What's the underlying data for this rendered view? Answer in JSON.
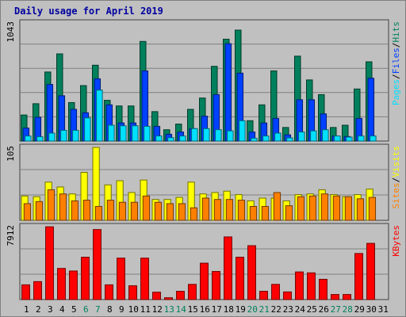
{
  "title": "Daily usage for April 2019",
  "colors": {
    "hits": "#00805c",
    "files": "#0040ff",
    "pages": "#00e0ff",
    "visits": "#ffff00",
    "sites": "#ff8000",
    "kbytes": "#ff0000",
    "weekend_label": "#00805c",
    "weekday_label": "#000000",
    "background": "#c0c0c0",
    "title": "#0000a0"
  },
  "chart_data": [
    {
      "type": "bar",
      "panel": "top",
      "y_tick_label": "1043",
      "ylim": [
        0,
        1043
      ],
      "grid": true,
      "legend_right": [
        "Pages",
        "/",
        "Files",
        "/",
        "Hits"
      ],
      "categories": [
        "1",
        "2",
        "3",
        "4",
        "5",
        "6",
        "7",
        "8",
        "9",
        "10",
        "11",
        "12",
        "13",
        "14",
        "15",
        "16",
        "17",
        "18",
        "19",
        "20",
        "21",
        "22",
        "23",
        "24",
        "25",
        "26",
        "27",
        "28",
        "29",
        "30",
        "31"
      ],
      "weekend_days": [
        "6",
        "7",
        "13",
        "14",
        "20",
        "21",
        "27",
        "28"
      ],
      "series": [
        {
          "name": "Hits",
          "values": [
            230,
            330,
            610,
            770,
            340,
            490,
            670,
            360,
            310,
            310,
            880,
            260,
            100,
            150,
            280,
            380,
            660,
            900,
            980,
            180,
            320,
            620,
            120,
            750,
            540,
            410,
            120,
            140,
            460,
            700,
            0
          ]
        },
        {
          "name": "Files",
          "values": [
            115,
            210,
            500,
            400,
            280,
            250,
            550,
            320,
            160,
            160,
            620,
            130,
            60,
            80,
            110,
            220,
            410,
            860,
            600,
            80,
            160,
            200,
            55,
            365,
            365,
            240,
            45,
            40,
            200,
            555,
            0
          ]
        },
        {
          "name": "Pages",
          "values": [
            45,
            38,
            70,
            95,
            95,
            205,
            450,
            140,
            135,
            135,
            130,
            45,
            30,
            45,
            110,
            110,
            100,
            90,
            180,
            25,
            45,
            70,
            28,
            80,
            90,
            100,
            45,
            35,
            45,
            45,
            0
          ]
        }
      ]
    },
    {
      "type": "bar",
      "panel": "middle",
      "y_tick_label": "105",
      "ylim": [
        0,
        105
      ],
      "grid": true,
      "legend_right": [
        "Sites",
        "/",
        "Visits"
      ],
      "categories": [
        "1",
        "2",
        "3",
        "4",
        "5",
        "6",
        "7",
        "8",
        "9",
        "10",
        "11",
        "12",
        "13",
        "14",
        "15",
        "16",
        "17",
        "18",
        "19",
        "20",
        "21",
        "22",
        "23",
        "24",
        "25",
        "26",
        "27",
        "28",
        "29",
        "30",
        "31"
      ],
      "series": [
        {
          "name": "Visits",
          "values": [
            35,
            34,
            55,
            48,
            38,
            69,
            105,
            51,
            57,
            40,
            58,
            30,
            30,
            33,
            55,
            38,
            40,
            42,
            37,
            28,
            32,
            32,
            28,
            37,
            38,
            44,
            37,
            34,
            37,
            45,
            0
          ]
        },
        {
          "name": "Sites",
          "values": [
            24,
            27,
            44,
            38,
            28,
            29,
            20,
            29,
            26,
            26,
            35,
            26,
            24,
            24,
            18,
            32,
            30,
            30,
            29,
            20,
            20,
            40,
            21,
            34,
            35,
            38,
            35,
            34,
            31,
            33,
            0
          ]
        }
      ]
    },
    {
      "type": "bar",
      "panel": "bottom",
      "y_tick_label": "7912",
      "ylim": [
        0,
        7912
      ],
      "grid": true,
      "legend_right": [
        "KBytes"
      ],
      "categories": [
        "1",
        "2",
        "3",
        "4",
        "5",
        "6",
        "7",
        "8",
        "9",
        "10",
        "11",
        "12",
        "13",
        "14",
        "15",
        "16",
        "17",
        "18",
        "19",
        "20",
        "21",
        "22",
        "23",
        "24",
        "25",
        "26",
        "27",
        "28",
        "29",
        "30",
        "31"
      ],
      "series": [
        {
          "name": "KBytes",
          "values": [
            1600,
            1950,
            7900,
            3380,
            3100,
            4600,
            7600,
            1600,
            4500,
            1500,
            4500,
            800,
            200,
            900,
            1650,
            3950,
            3050,
            6800,
            4600,
            5850,
            900,
            1650,
            830,
            3000,
            2900,
            2200,
            550,
            550,
            5000,
            6100,
            0
          ]
        }
      ]
    }
  ]
}
